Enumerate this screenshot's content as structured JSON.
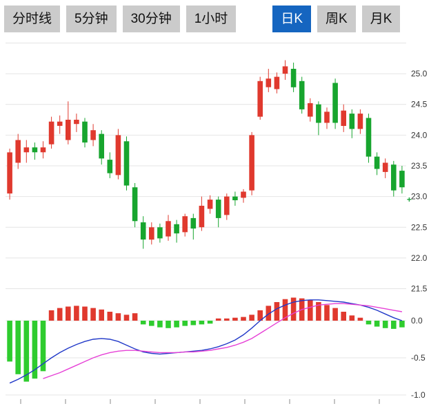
{
  "toolbar": {
    "tabs": [
      {
        "label": "分时线",
        "active": false
      },
      {
        "label": "5分钟",
        "active": false
      },
      {
        "label": "30分钟",
        "active": false
      },
      {
        "label": "1小时",
        "active": false
      },
      {
        "label": "日K",
        "active": true
      },
      {
        "label": "周K",
        "active": false
      },
      {
        "label": "月K",
        "active": false
      }
    ],
    "inactive_bg": "#cbcbcb",
    "active_bg": "#1565c0"
  },
  "chart_data": {
    "type": "candlestick",
    "description": "Daily K-line (日K) candlestick chart with MACD sub-panel; red = up, green = down",
    "price_axis": {
      "ticks": [
        25.0,
        24.5,
        24.0,
        23.5,
        23.0,
        22.5,
        22.0,
        21.5
      ],
      "grid_lines": [
        25.5,
        25.0,
        24.5,
        24.0,
        23.5,
        23.0,
        22.5,
        22.0,
        21.5
      ],
      "range": [
        21.45,
        25.55
      ]
    },
    "macd_axis": {
      "ticks": [
        0.0,
        -0.5,
        -1.0
      ],
      "range": [
        -1.05,
        0.45
      ]
    },
    "candles_ohlc_format": [
      "open",
      "high",
      "low",
      "close"
    ],
    "candles": [
      [
        23.05,
        23.78,
        22.95,
        23.72
      ],
      [
        23.55,
        24.02,
        23.45,
        23.92
      ],
      [
        23.72,
        23.92,
        23.55,
        23.8
      ],
      [
        23.8,
        23.88,
        23.6,
        23.72
      ],
      [
        23.72,
        23.9,
        23.62,
        23.8
      ],
      [
        23.85,
        24.3,
        23.78,
        24.22
      ],
      [
        24.15,
        24.32,
        24.02,
        24.22
      ],
      [
        23.92,
        24.55,
        23.85,
        24.25
      ],
      [
        24.18,
        24.35,
        24.05,
        24.25
      ],
      [
        24.22,
        24.28,
        23.8,
        23.88
      ],
      [
        23.92,
        24.18,
        23.82,
        24.08
      ],
      [
        24.02,
        24.08,
        23.52,
        23.62
      ],
      [
        23.6,
        23.72,
        23.3,
        23.38
      ],
      [
        23.35,
        24.1,
        23.28,
        24.0
      ],
      [
        23.9,
        23.98,
        23.1,
        23.18
      ],
      [
        23.15,
        23.22,
        22.5,
        22.6
      ],
      [
        22.58,
        22.68,
        22.15,
        22.3
      ],
      [
        22.3,
        22.58,
        22.22,
        22.5
      ],
      [
        22.5,
        22.56,
        22.25,
        22.32
      ],
      [
        22.35,
        22.7,
        22.28,
        22.6
      ],
      [
        22.55,
        22.62,
        22.25,
        22.4
      ],
      [
        22.42,
        22.72,
        22.35,
        22.68
      ],
      [
        22.65,
        22.72,
        22.3,
        22.48
      ],
      [
        22.5,
        23.0,
        22.44,
        22.85
      ],
      [
        22.8,
        23.02,
        22.72,
        22.95
      ],
      [
        22.95,
        23.0,
        22.5,
        22.65
      ],
      [
        22.7,
        23.05,
        22.62,
        23.0
      ],
      [
        23.0,
        23.08,
        22.85,
        22.94
      ],
      [
        22.98,
        23.12,
        22.9,
        23.08
      ],
      [
        23.1,
        24.05,
        23.02,
        24.0
      ],
      [
        24.3,
        24.95,
        24.25,
        24.88
      ],
      [
        24.78,
        25.08,
        24.7,
        24.92
      ],
      [
        24.75,
        25.02,
        24.68,
        24.95
      ],
      [
        25.0,
        25.22,
        24.9,
        25.12
      ],
      [
        25.08,
        25.18,
        24.7,
        24.78
      ],
      [
        24.88,
        24.95,
        24.35,
        24.42
      ],
      [
        24.3,
        24.6,
        24.22,
        24.52
      ],
      [
        24.5,
        24.55,
        24.0,
        24.2
      ],
      [
        24.2,
        24.45,
        24.1,
        24.38
      ],
      [
        24.85,
        24.92,
        24.1,
        24.2
      ],
      [
        24.15,
        24.5,
        24.05,
        24.4
      ],
      [
        24.35,
        24.42,
        23.95,
        24.1
      ],
      [
        24.1,
        24.42,
        24.02,
        24.35
      ],
      [
        24.28,
        24.35,
        23.55,
        23.65
      ],
      [
        23.65,
        23.72,
        23.35,
        23.45
      ],
      [
        23.4,
        23.62,
        23.3,
        23.55
      ],
      [
        23.52,
        23.58,
        23.0,
        23.1
      ],
      [
        23.42,
        23.5,
        23.05,
        23.15
      ]
    ],
    "macd": {
      "dif": [
        -0.84,
        -0.79,
        -0.73,
        -0.66,
        -0.58,
        -0.5,
        -0.43,
        -0.37,
        -0.32,
        -0.28,
        -0.25,
        -0.24,
        -0.25,
        -0.28,
        -0.33,
        -0.38,
        -0.42,
        -0.44,
        -0.45,
        -0.44,
        -0.43,
        -0.42,
        -0.41,
        -0.4,
        -0.38,
        -0.35,
        -0.31,
        -0.26,
        -0.19,
        -0.1,
        0.0,
        0.09,
        0.16,
        0.21,
        0.25,
        0.27,
        0.28,
        0.28,
        0.27,
        0.26,
        0.25,
        0.23,
        0.21,
        0.18,
        0.14,
        0.09,
        0.04,
        0.0
      ],
      "dea": [
        null,
        null,
        null,
        null,
        -0.78,
        -0.74,
        -0.7,
        -0.65,
        -0.6,
        -0.55,
        -0.5,
        -0.46,
        -0.43,
        -0.41,
        -0.4,
        -0.4,
        -0.41,
        -0.42,
        -0.43,
        -0.43,
        -0.43,
        -0.42,
        -0.42,
        -0.41,
        -0.4,
        -0.38,
        -0.36,
        -0.33,
        -0.29,
        -0.24,
        -0.17,
        -0.1,
        -0.03,
        0.04,
        0.1,
        0.15,
        0.18,
        0.21,
        0.22,
        0.23,
        0.23,
        0.22,
        0.21,
        0.2,
        0.18,
        0.16,
        0.14,
        0.12
      ],
      "hist": [
        -0.55,
        -0.72,
        -0.82,
        -0.78,
        -0.68,
        0.14,
        0.17,
        0.19,
        0.2,
        0.19,
        0.17,
        0.15,
        0.12,
        0.1,
        0.08,
        0.1,
        -0.05,
        -0.07,
        -0.09,
        -0.1,
        -0.09,
        -0.07,
        -0.06,
        -0.05,
        -0.04,
        0.03,
        0.03,
        0.04,
        0.05,
        0.08,
        0.14,
        0.2,
        0.25,
        0.29,
        0.31,
        0.3,
        0.28,
        0.25,
        0.21,
        0.17,
        0.12,
        0.07,
        0.04,
        -0.05,
        -0.08,
        -0.1,
        -0.11,
        -0.09
      ]
    },
    "marker": {
      "price": 22.95,
      "glyph": "+",
      "color": "#1da53c"
    },
    "colors": {
      "up": "#e0392e",
      "down": "#17a52e",
      "hist_up": "#e0392e",
      "hist_down": "#2ecc2e",
      "dif": "#2038c8",
      "dea": "#e640d6",
      "grid": "#e4e4e4",
      "axis_text": "#333333",
      "x_tick": "#888888"
    }
  }
}
